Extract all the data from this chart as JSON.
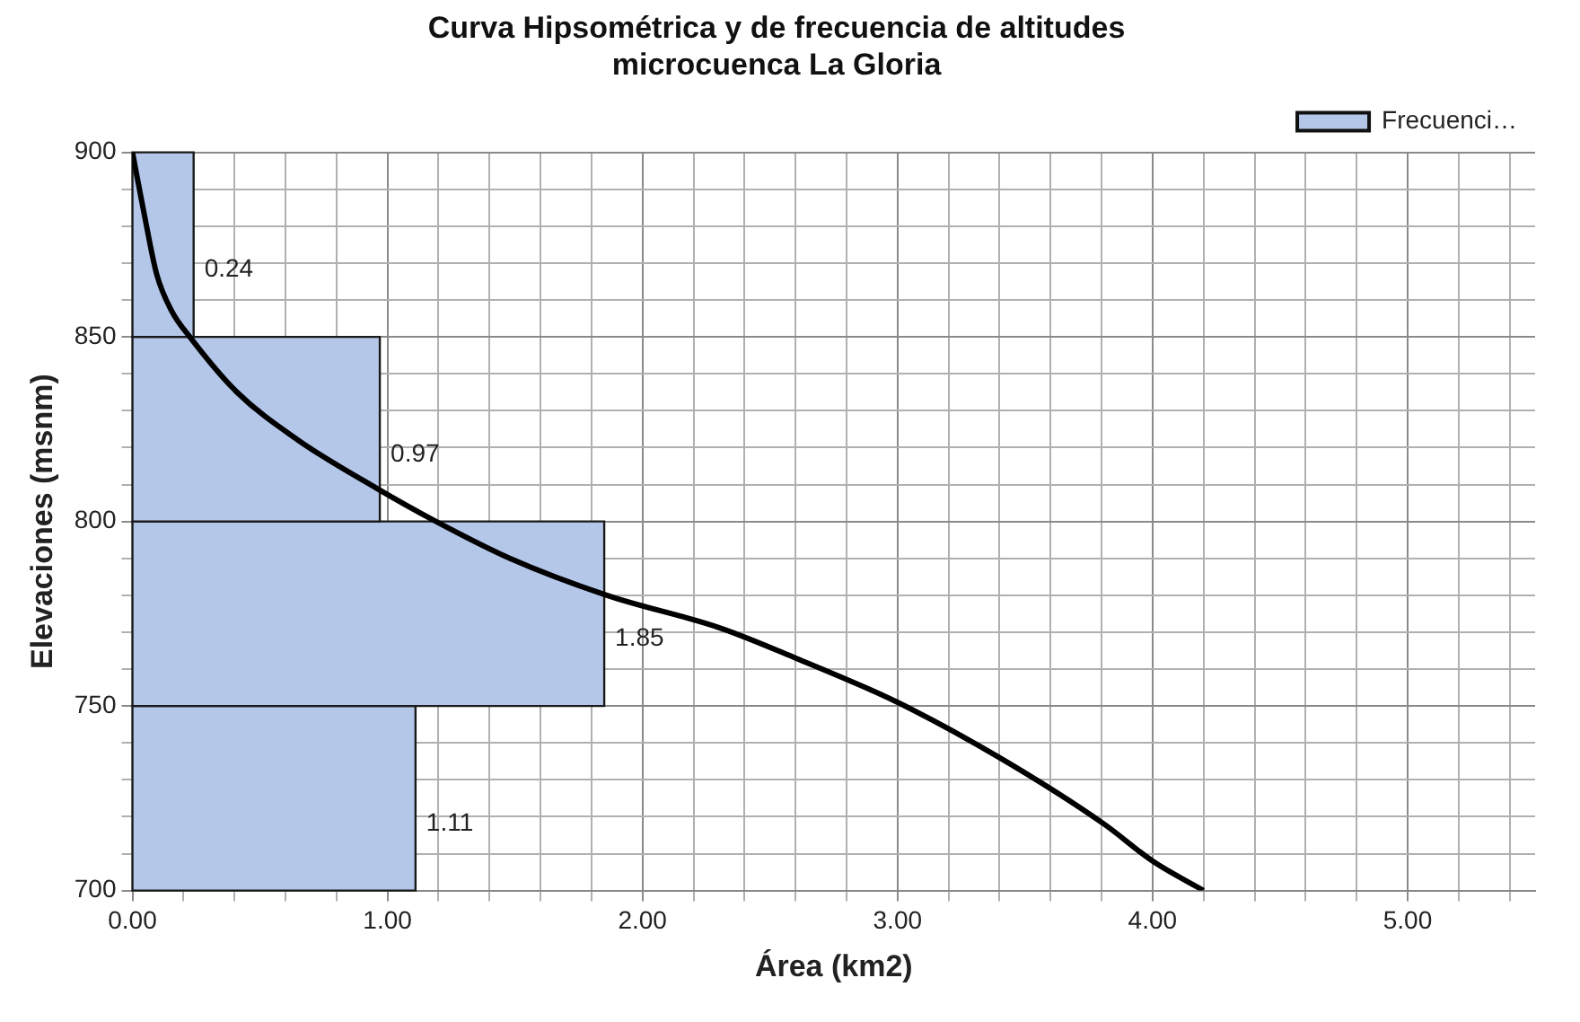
{
  "chart_data": {
    "type": "histogram",
    "orientation": "horizontal",
    "title": "Curva Hipsométrica y de frecuencia de altitudes\nmicrocuenca La Gloria",
    "xlabel": "Área (km2)",
    "ylabel": "Elevaciones (msnm)",
    "xlim": [
      0,
      5.5
    ],
    "ylim": [
      700,
      900
    ],
    "xticks": [
      {
        "value": 0,
        "label": "0.00"
      },
      {
        "value": 0.2,
        "label": null
      },
      {
        "value": 0.4,
        "label": null
      },
      {
        "value": 0.6,
        "label": null
      },
      {
        "value": 0.8,
        "label": null
      },
      {
        "value": 1,
        "label": "1.00"
      },
      {
        "value": 1.2,
        "label": null
      },
      {
        "value": 1.4,
        "label": null
      },
      {
        "value": 1.6,
        "label": null
      },
      {
        "value": 1.8,
        "label": null
      },
      {
        "value": 2,
        "label": "2.00"
      },
      {
        "value": 2.2,
        "label": null
      },
      {
        "value": 2.4,
        "label": null
      },
      {
        "value": 2.6,
        "label": null
      },
      {
        "value": 2.8,
        "label": null
      },
      {
        "value": 3,
        "label": "3.00"
      },
      {
        "value": 3.2,
        "label": null
      },
      {
        "value": 3.4,
        "label": null
      },
      {
        "value": 3.6,
        "label": null
      },
      {
        "value": 3.8,
        "label": null
      },
      {
        "value": 4,
        "label": "4.00"
      },
      {
        "value": 4.2,
        "label": null
      },
      {
        "value": 4.4,
        "label": null
      },
      {
        "value": 4.6,
        "label": null
      },
      {
        "value": 4.8,
        "label": null
      },
      {
        "value": 5,
        "label": "5.00"
      },
      {
        "value": 5.2,
        "label": null
      },
      {
        "value": 5.4,
        "label": null
      }
    ],
    "yticks": [
      700,
      {
        "value": 710,
        "label": null
      },
      {
        "value": 720,
        "label": null
      },
      {
        "value": 730,
        "label": null
      },
      {
        "value": 740,
        "label": null
      },
      750,
      {
        "value": 760,
        "label": null
      },
      {
        "value": 770,
        "label": null
      },
      {
        "value": 780,
        "label": null
      },
      {
        "value": 790,
        "label": null
      },
      800,
      {
        "value": 810,
        "label": null
      },
      {
        "value": 820,
        "label": null
      },
      {
        "value": 830,
        "label": null
      },
      {
        "value": 840,
        "label": null
      },
      850,
      {
        "value": 860,
        "label": null
      },
      {
        "value": 870,
        "label": null
      },
      {
        "value": 880,
        "label": null
      },
      {
        "value": 890,
        "label": null
      },
      900
    ],
    "grid": true,
    "legend": "top right",
    "series": [
      {
        "name": "Frecuenci…",
        "color": "#b4c7e9",
        "bins": [
          700,
          750,
          800,
          850,
          900
        ],
        "values": [
          1.11,
          1.85,
          0.97,
          0.24
        ],
        "value_labels": [
          "1.11",
          "1.85",
          "0.97",
          "0.24"
        ]
      },
      {
        "type": "line",
        "color": "#000000",
        "x": [
          900,
          883,
          867,
          857,
          850,
          835,
          822,
          809,
          800,
          790,
          780,
          771,
          763,
          751,
          736,
          718,
          708,
          700
        ],
        "values": [
          0,
          0.047,
          0.095,
          0.154,
          0.225,
          0.41,
          0.65,
          0.957,
          1.19,
          1.48,
          1.86,
          2.31,
          2.6,
          3.0,
          3.4,
          3.81,
          4.0,
          4.2
        ]
      }
    ]
  }
}
